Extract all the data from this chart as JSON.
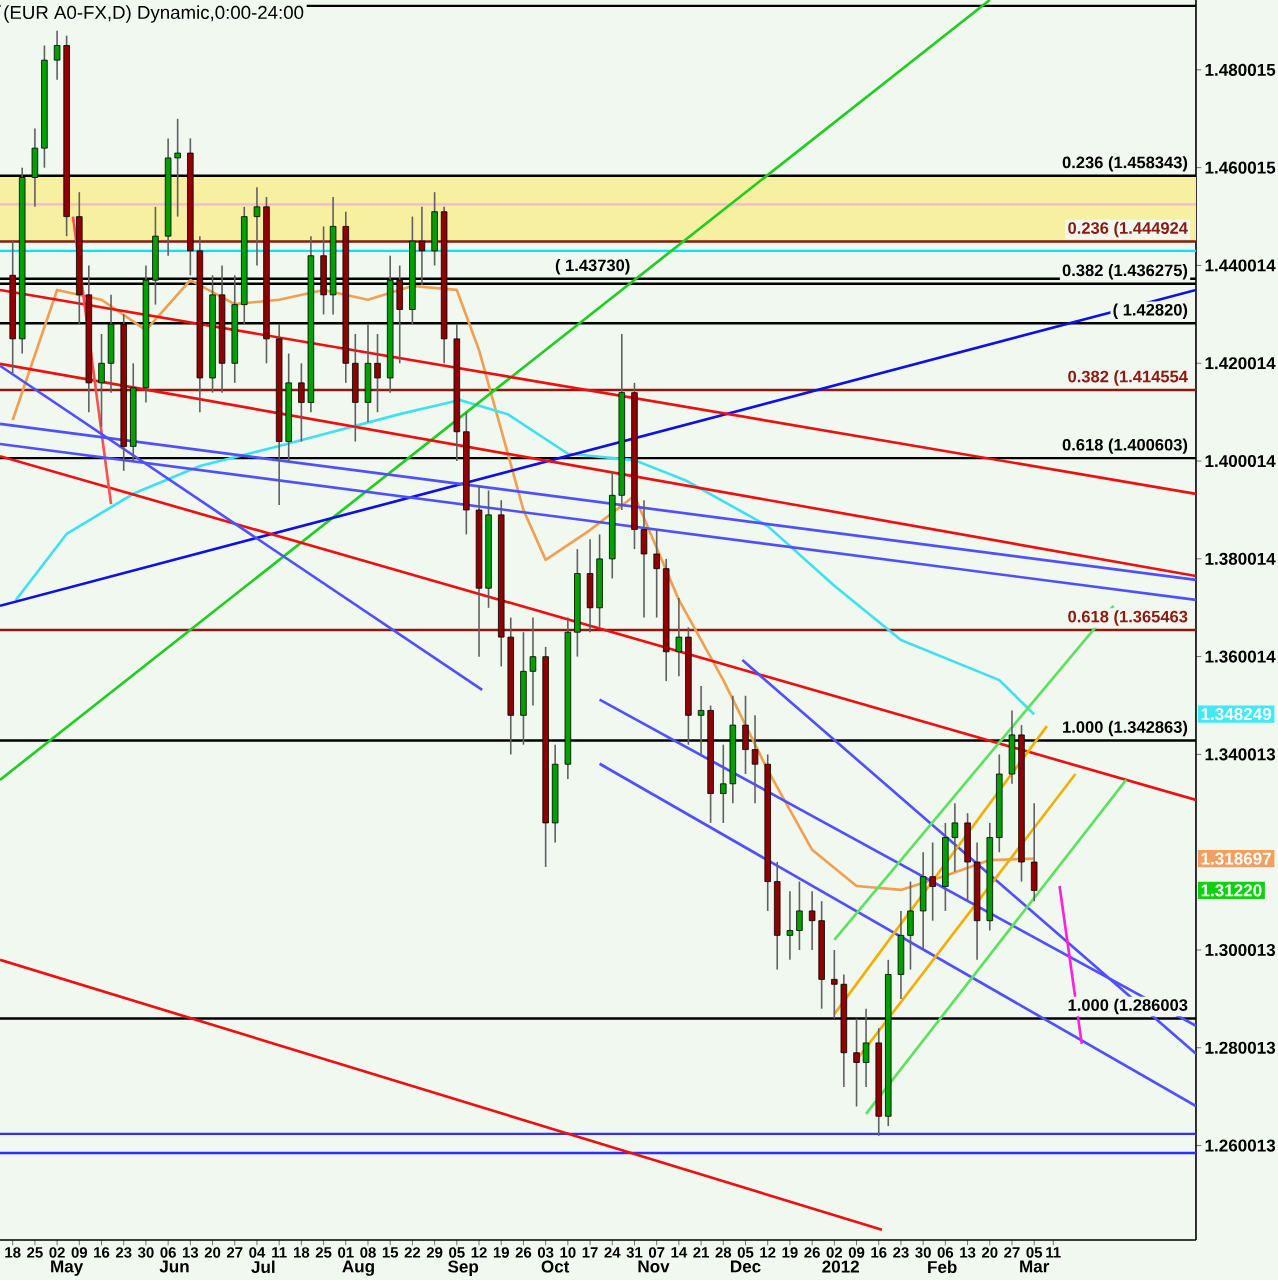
{
  "chart_data": {
    "type": "candlestick",
    "title": "(EUR A0-FX,D) Dynamic,0:00-24:00",
    "x": [
      "2011-04-18",
      "2011-04-21",
      "2011-04-25",
      "2011-04-28",
      "2011-05-02",
      "2011-05-05",
      "2011-05-09",
      "2011-05-12",
      "2011-05-16",
      "2011-05-19",
      "2011-05-23",
      "2011-05-26",
      "2011-05-30",
      "2011-06-02",
      "2011-06-06",
      "2011-06-09",
      "2011-06-13",
      "2011-06-16",
      "2011-06-20",
      "2011-06-23",
      "2011-06-27",
      "2011-06-30",
      "2011-07-04",
      "2011-07-07",
      "2011-07-11",
      "2011-07-14",
      "2011-07-18",
      "2011-07-21",
      "2011-07-25",
      "2011-07-28",
      "2011-08-01",
      "2011-08-04",
      "2011-08-08",
      "2011-08-11",
      "2011-08-15",
      "2011-08-18",
      "2011-08-22",
      "2011-08-25",
      "2011-08-29",
      "2011-09-01",
      "2011-09-05",
      "2011-09-08",
      "2011-09-12",
      "2011-09-15",
      "2011-09-19",
      "2011-09-22",
      "2011-09-26",
      "2011-09-29",
      "2011-10-03",
      "2011-10-06",
      "2011-10-10",
      "2011-10-13",
      "2011-10-17",
      "2011-10-20",
      "2011-10-24",
      "2011-10-27",
      "2011-10-31",
      "2011-11-03",
      "2011-11-07",
      "2011-11-10",
      "2011-11-14",
      "2011-11-17",
      "2011-11-21",
      "2011-11-24",
      "2011-11-28",
      "2011-12-01",
      "2011-12-05",
      "2011-12-08",
      "2011-12-12",
      "2011-12-15",
      "2011-12-19",
      "2011-12-22",
      "2011-12-26",
      "2011-12-29",
      "2012-01-02",
      "2012-01-05",
      "2012-01-09",
      "2012-01-12",
      "2012-01-16",
      "2012-01-19",
      "2012-01-23",
      "2012-01-26",
      "2012-01-30",
      "2012-02-02",
      "2012-02-06",
      "2012-02-09",
      "2012-02-13",
      "2012-02-16",
      "2012-02-20",
      "2012-02-23",
      "2012-02-27",
      "2012-03-01",
      "2012-03-05"
    ],
    "ohlc": [
      [
        1.438,
        1.445,
        1.418,
        1.425
      ],
      [
        1.425,
        1.46,
        1.422,
        1.458
      ],
      [
        1.458,
        1.468,
        1.452,
        1.464
      ],
      [
        1.464,
        1.485,
        1.46,
        1.482
      ],
      [
        1.482,
        1.488,
        1.478,
        1.485
      ],
      [
        1.485,
        1.487,
        1.446,
        1.45
      ],
      [
        1.45,
        1.455,
        1.428,
        1.434
      ],
      [
        1.434,
        1.44,
        1.41,
        1.416
      ],
      [
        1.416,
        1.426,
        1.407,
        1.42
      ],
      [
        1.42,
        1.434,
        1.414,
        1.428
      ],
      [
        1.428,
        1.43,
        1.398,
        1.403
      ],
      [
        1.403,
        1.42,
        1.4,
        1.415
      ],
      [
        1.415,
        1.44,
        1.412,
        1.437
      ],
      [
        1.437,
        1.452,
        1.432,
        1.446
      ],
      [
        1.446,
        1.466,
        1.442,
        1.462
      ],
      [
        1.462,
        1.47,
        1.45,
        1.463
      ],
      [
        1.463,
        1.466,
        1.438,
        1.443
      ],
      [
        1.443,
        1.446,
        1.41,
        1.417
      ],
      [
        1.417,
        1.438,
        1.414,
        1.434
      ],
      [
        1.434,
        1.44,
        1.414,
        1.42
      ],
      [
        1.42,
        1.438,
        1.416,
        1.432
      ],
      [
        1.432,
        1.452,
        1.428,
        1.45
      ],
      [
        1.45,
        1.456,
        1.44,
        1.452
      ],
      [
        1.452,
        1.454,
        1.42,
        1.425
      ],
      [
        1.425,
        1.428,
        1.391,
        1.404
      ],
      [
        1.404,
        1.422,
        1.4,
        1.416
      ],
      [
        1.416,
        1.42,
        1.404,
        1.412
      ],
      [
        1.412,
        1.446,
        1.41,
        1.442
      ],
      [
        1.442,
        1.448,
        1.43,
        1.434
      ],
      [
        1.434,
        1.454,
        1.43,
        1.448
      ],
      [
        1.448,
        1.451,
        1.416,
        1.42
      ],
      [
        1.42,
        1.426,
        1.404,
        1.412
      ],
      [
        1.412,
        1.428,
        1.408,
        1.42
      ],
      [
        1.42,
        1.426,
        1.41,
        1.417
      ],
      [
        1.417,
        1.442,
        1.414,
        1.437
      ],
      [
        1.437,
        1.44,
        1.42,
        1.431
      ],
      [
        1.431,
        1.45,
        1.428,
        1.445
      ],
      [
        1.445,
        1.452,
        1.436,
        1.443
      ],
      [
        1.443,
        1.455,
        1.44,
        1.451
      ],
      [
        1.451,
        1.452,
        1.42,
        1.425
      ],
      [
        1.425,
        1.428,
        1.4,
        1.406
      ],
      [
        1.406,
        1.41,
        1.385,
        1.39
      ],
      [
        1.39,
        1.395,
        1.36,
        1.374
      ],
      [
        1.374,
        1.394,
        1.37,
        1.389
      ],
      [
        1.389,
        1.392,
        1.358,
        1.364
      ],
      [
        1.364,
        1.368,
        1.34,
        1.348
      ],
      [
        1.348,
        1.365,
        1.342,
        1.357
      ],
      [
        1.357,
        1.368,
        1.35,
        1.36
      ],
      [
        1.36,
        1.362,
        1.317,
        1.326
      ],
      [
        1.326,
        1.342,
        1.322,
        1.338
      ],
      [
        1.338,
        1.368,
        1.335,
        1.365
      ],
      [
        1.365,
        1.382,
        1.36,
        1.377
      ],
      [
        1.377,
        1.384,
        1.365,
        1.37
      ],
      [
        1.37,
        1.385,
        1.366,
        1.38
      ],
      [
        1.38,
        1.398,
        1.376,
        1.393
      ],
      [
        1.393,
        1.426,
        1.39,
        1.414
      ],
      [
        1.414,
        1.416,
        1.382,
        1.386
      ],
      [
        1.386,
        1.392,
        1.368,
        1.381
      ],
      [
        1.381,
        1.386,
        1.368,
        1.378
      ],
      [
        1.378,
        1.38,
        1.355,
        1.361
      ],
      [
        1.361,
        1.372,
        1.356,
        1.364
      ],
      [
        1.364,
        1.366,
        1.342,
        1.348
      ],
      [
        1.348,
        1.354,
        1.34,
        1.349
      ],
      [
        1.349,
        1.35,
        1.326,
        1.332
      ],
      [
        1.332,
        1.342,
        1.326,
        1.334
      ],
      [
        1.334,
        1.352,
        1.33,
        1.346
      ],
      [
        1.346,
        1.352,
        1.336,
        1.341
      ],
      [
        1.341,
        1.348,
        1.33,
        1.338
      ],
      [
        1.338,
        1.34,
        1.308,
        1.314
      ],
      [
        1.314,
        1.318,
        1.296,
        1.303
      ],
      [
        1.303,
        1.312,
        1.298,
        1.304
      ],
      [
        1.304,
        1.314,
        1.3,
        1.308
      ],
      [
        1.308,
        1.312,
        1.3,
        1.306
      ],
      [
        1.306,
        1.31,
        1.288,
        1.294
      ],
      [
        1.294,
        1.3,
        1.286,
        1.293
      ],
      [
        1.293,
        1.295,
        1.272,
        1.279
      ],
      [
        1.279,
        1.286,
        1.268,
        1.277
      ],
      [
        1.277,
        1.288,
        1.272,
        1.281
      ],
      [
        1.281,
        1.284,
        1.262,
        1.266
      ],
      [
        1.266,
        1.298,
        1.264,
        1.295
      ],
      [
        1.295,
        1.308,
        1.29,
        1.303
      ],
      [
        1.303,
        1.314,
        1.296,
        1.308
      ],
      [
        1.308,
        1.32,
        1.3,
        1.315
      ],
      [
        1.315,
        1.322,
        1.306,
        1.313
      ],
      [
        1.313,
        1.326,
        1.308,
        1.323
      ],
      [
        1.323,
        1.33,
        1.316,
        1.326
      ],
      [
        1.326,
        1.328,
        1.31,
        1.318
      ],
      [
        1.318,
        1.322,
        1.298,
        1.306
      ],
      [
        1.306,
        1.326,
        1.304,
        1.323
      ],
      [
        1.323,
        1.34,
        1.32,
        1.336
      ],
      [
        1.336,
        1.349,
        1.334,
        1.344
      ],
      [
        1.344,
        1.346,
        1.314,
        1.318
      ],
      [
        1.318,
        1.33,
        1.31,
        1.3122
      ]
    ],
    "series": [
      {
        "type": "line",
        "color": "#f0a050",
        "x": [
          "2011-04-18",
          "2011-05-02",
          "2011-05-16",
          "2011-05-30",
          "2011-06-13",
          "2011-06-27",
          "2011-07-11",
          "2011-07-25",
          "2011-08-08",
          "2011-08-22",
          "2011-09-05",
          "2011-09-12",
          "2011-09-19",
          "2011-09-26",
          "2011-10-03",
          "2011-10-17",
          "2011-10-31",
          "2011-11-14",
          "2011-11-28",
          "2011-12-12",
          "2011-12-26",
          "2012-01-09",
          "2012-01-23",
          "2012-02-06",
          "2012-02-20",
          "2012-03-05"
        ],
        "values": [
          1.4084,
          1.435,
          1.433,
          1.4268,
          1.437,
          1.4321,
          1.433,
          1.435,
          1.433,
          1.4358,
          1.435,
          1.4227,
          1.4064,
          1.39,
          1.3798,
          1.3859,
          1.3929,
          1.3716,
          1.3552,
          1.3368,
          1.3205,
          1.3131,
          1.3123,
          1.3152,
          1.3184,
          1.3187
        ]
      },
      {
        "type": "line",
        "color": "#40e0f0",
        "x": [
          "2011-04-19",
          "2011-05-05",
          "2011-05-26",
          "2011-06-16",
          "2011-07-11",
          "2011-08-18",
          "2011-09-06",
          "2011-09-21",
          "2011-10-10",
          "2011-10-31",
          "2011-11-16",
          "2011-12-12",
          "2012-01-02",
          "2012-01-23",
          "2012-02-23",
          "2012-03-05"
        ],
        "values": [
          1.3716,
          1.3851,
          1.3933,
          1.399,
          1.4031,
          1.4096,
          1.4125,
          1.4096,
          1.4015,
          1.4002,
          1.3961,
          1.3867,
          1.3745,
          1.3634,
          1.3552,
          1.3482
        ]
      },
      {
        "type": "line",
        "color": "#22cc22",
        "x": [
          "2011-04-14",
          "2012-02-20"
        ],
        "values": [
          1.3348,
          1.4943
        ]
      },
      {
        "type": "line",
        "color": "#1010e0",
        "x": [
          "2011-04-14",
          "2012-04-25"
        ],
        "values": [
          1.3704,
          1.435
        ]
      },
      {
        "type": "line",
        "color": "#ee1010",
        "x": [
          "2011-04-14",
          "2012-04-25"
        ],
        "values": [
          1.435,
          1.3933
        ]
      },
      {
        "type": "line",
        "color": "#ee1010",
        "x": [
          "2011-04-14",
          "2012-04-25"
        ],
        "values": [
          1.4199,
          1.3765
        ]
      },
      {
        "type": "line",
        "color": "#ee1010",
        "x": [
          "2011-04-14",
          "2012-04-25"
        ],
        "values": [
          1.401,
          1.3307
        ]
      },
      {
        "type": "line",
        "color": "#ee1010",
        "x": [
          "2011-04-14",
          "2012-01-17"
        ],
        "values": [
          1.298,
          1.2428
        ]
      },
      {
        "type": "line",
        "color": "#ff5050",
        "x": [
          "2011-05-07",
          "2011-05-19"
        ],
        "values": [
          1.45,
          1.3912
        ]
      },
      {
        "type": "line",
        "color": "#5050ff",
        "x": [
          "2011-04-14",
          "2012-04-25"
        ],
        "values": [
          1.4076,
          1.3757
        ]
      },
      {
        "type": "line",
        "color": "#5050ff",
        "x": [
          "2011-04-14",
          "2012-04-25"
        ],
        "values": [
          1.4035,
          1.3716
        ]
      },
      {
        "type": "line",
        "color": "#5050ff",
        "x": [
          "2011-04-14",
          "2011-09-13"
        ],
        "values": [
          1.4195,
          1.3532
        ]
      },
      {
        "type": "line",
        "color": "#5050ff",
        "x": [
          "2011-10-20",
          "2012-04-25"
        ],
        "values": [
          1.3512,
          1.2845
        ]
      },
      {
        "type": "line",
        "color": "#5050ff",
        "x": [
          "2011-10-20",
          "2012-04-25"
        ],
        "values": [
          1.3381,
          1.2681
        ]
      },
      {
        "type": "line",
        "color": "#5050ff",
        "x": [
          "2011-12-04",
          "2012-04-25"
        ],
        "values": [
          1.3593,
          1.2788
        ]
      },
      {
        "type": "line",
        "color": "#f0b000",
        "x": [
          "2012-01-02",
          "2012-03-09"
        ],
        "values": [
          1.2869,
          1.3458
        ]
      },
      {
        "type": "line",
        "color": "#f0b000",
        "x": [
          "2012-01-09",
          "2012-03-18"
        ],
        "values": [
          1.2775,
          1.336
        ]
      },
      {
        "type": "line",
        "color": "#60e060",
        "x": [
          "2012-01-02",
          "2012-03-30"
        ],
        "values": [
          1.3021,
          1.3704
        ]
      },
      {
        "type": "line",
        "color": "#60e060",
        "x": [
          "2012-01-12",
          "2012-04-03"
        ],
        "values": [
          1.2665,
          1.3348
        ]
      },
      {
        "type": "line",
        "color": "#ff20e0",
        "x": [
          "2012-03-13",
          "2012-03-20"
        ],
        "values": [
          1.3131,
          1.2808
        ]
      }
    ],
    "bands": [
      {
        "axis": "y",
        "from": 1.444924,
        "to": 1.458343,
        "color": "#f6f0a0"
      }
    ],
    "ref_lines": [
      {
        "axis": "y",
        "value": 1.4931,
        "color": "#000000"
      },
      {
        "axis": "y",
        "value": 1.458343,
        "label": "0.236 (1.458343)",
        "color": "#000000"
      },
      {
        "axis": "y",
        "value": 1.4525,
        "color": "#f4b8c8"
      },
      {
        "axis": "y",
        "value": 1.444924,
        "label": "0.236 (1.444924",
        "color": "#8b1a10"
      },
      {
        "axis": "y",
        "value": 1.443,
        "color": "#00e8f8"
      },
      {
        "axis": "y",
        "value": 1.436275,
        "label": "0.382 (1.436275)",
        "color": "#000000"
      },
      {
        "axis": "y",
        "value": 1.4373,
        "label": "( 1.43730)",
        "color": "#000000"
      },
      {
        "axis": "y",
        "value": 1.4282,
        "label": "( 1.42820)",
        "color": "#000000"
      },
      {
        "axis": "y",
        "value": 1.414554,
        "label": "0.382 (1.414554",
        "color": "#8b1a10"
      },
      {
        "axis": "y",
        "value": 1.400603,
        "label": "0.618 (1.400603)",
        "color": "#000000"
      },
      {
        "axis": "y",
        "value": 1.365463,
        "label": "0.618 (1.365463",
        "color": "#8b1a10"
      },
      {
        "axis": "y",
        "value": 1.342863,
        "label": "1.000 (1.342863)",
        "color": "#000000"
      },
      {
        "axis": "y",
        "value": 1.286003,
        "label": "1.000 (1.286003",
        "color": "#000000"
      },
      {
        "axis": "y",
        "value": 1.2624,
        "color": "#3030ff"
      },
      {
        "axis": "y",
        "value": 1.2585,
        "color": "#3030ff"
      }
    ],
    "y2lim": [
      1.2407,
      1.4943
    ],
    "y2ticks": [
      1.348249,
      1.318697,
      {
        "value": 1.3122,
        "label": "1.31220"
      }
    ],
    "x2lim": [
      "2011-04-14",
      "2012-04-25"
    ],
    "x2ticks": [
      {
        "value": "2011-05-05",
        "label": "May"
      },
      {
        "value": "2011-06-08",
        "label": "Jun"
      },
      {
        "value": "2011-07-06",
        "label": "Jul"
      },
      {
        "value": "2011-08-05",
        "label": "Aug"
      },
      {
        "value": "2011-09-07",
        "label": "Sep"
      },
      {
        "value": "2011-10-06",
        "label": "Oct"
      },
      {
        "value": "2011-11-06",
        "label": "Nov"
      },
      {
        "value": "2011-12-05",
        "label": "Dec"
      },
      {
        "value": "2012-01-04",
        "label": "2012"
      },
      {
        "value": "2012-02-05",
        "label": "Feb"
      },
      {
        "value": "2012-03-05",
        "label": "Mar"
      }
    ],
    "xlim": [
      "2011-04-14",
      "2012-04-25"
    ],
    "ylim": [
      1.2407,
      1.4943
    ],
    "yticks": [
      1.260013,
      1.280013,
      1.300013,
      1.340013,
      1.360014,
      1.380014,
      1.400014,
      1.420014,
      1.440014,
      1.460015,
      1.480015
    ],
    "xticks": [
      {
        "value": "2011-04-18",
        "label": "18"
      },
      {
        "value": "2011-04-25",
        "label": "25"
      },
      {
        "value": "2011-05-02",
        "label": "02"
      },
      {
        "value": "2011-05-09",
        "label": "09"
      },
      {
        "value": "2011-05-16",
        "label": "16"
      },
      {
        "value": "2011-05-23",
        "label": "23"
      },
      {
        "value": "2011-05-30",
        "label": "30"
      },
      {
        "value": "2011-06-06",
        "label": "06"
      },
      {
        "value": "2011-06-13",
        "label": "13"
      },
      {
        "value": "2011-06-20",
        "label": "20"
      },
      {
        "value": "2011-06-27",
        "label": "27"
      },
      {
        "value": "2011-07-04",
        "label": "04"
      },
      {
        "value": "2011-07-11",
        "label": "11"
      },
      {
        "value": "2011-07-18",
        "label": "18"
      },
      {
        "value": "2011-07-25",
        "label": "25"
      },
      {
        "value": "2011-08-01",
        "label": "01"
      },
      {
        "value": "2011-08-08",
        "label": "08"
      },
      {
        "value": "2011-08-15",
        "label": "15"
      },
      {
        "value": "2011-08-22",
        "label": "22"
      },
      {
        "value": "2011-08-29",
        "label": "29"
      },
      {
        "value": "2011-09-05",
        "label": "05"
      },
      {
        "value": "2011-09-12",
        "label": "12"
      },
      {
        "value": "2011-09-19",
        "label": "19"
      },
      {
        "value": "2011-09-26",
        "label": "26"
      },
      {
        "value": "2011-10-03",
        "label": "03"
      },
      {
        "value": "2011-10-10",
        "label": "10"
      },
      {
        "value": "2011-10-17",
        "label": "17"
      },
      {
        "value": "2011-10-24",
        "label": "24"
      },
      {
        "value": "2011-10-31",
        "label": "31"
      },
      {
        "value": "2011-11-07",
        "label": "07"
      },
      {
        "value": "2011-11-14",
        "label": "14"
      },
      {
        "value": "2011-11-21",
        "label": "21"
      },
      {
        "value": "2011-11-28",
        "label": "28"
      },
      {
        "value": "2011-12-05",
        "label": "05"
      },
      {
        "value": "2011-12-12",
        "label": "12"
      },
      {
        "value": "2011-12-19",
        "label": "19"
      },
      {
        "value": "2011-12-26",
        "label": "26"
      },
      {
        "value": "2012-01-02",
        "label": "02"
      },
      {
        "value": "2012-01-09",
        "label": "09"
      },
      {
        "value": "2012-01-16",
        "label": "16"
      },
      {
        "value": "2012-01-23",
        "label": "23"
      },
      {
        "value": "2012-01-30",
        "label": "30"
      },
      {
        "value": "2012-02-06",
        "label": "06"
      },
      {
        "value": "2012-02-13",
        "label": "13"
      },
      {
        "value": "2012-02-20",
        "label": "20"
      },
      {
        "value": "2012-02-27",
        "label": "27"
      },
      {
        "value": "2012-03-05",
        "label": "05"
      },
      {
        "value": "2012-03-11",
        "label": "11"
      }
    ]
  }
}
